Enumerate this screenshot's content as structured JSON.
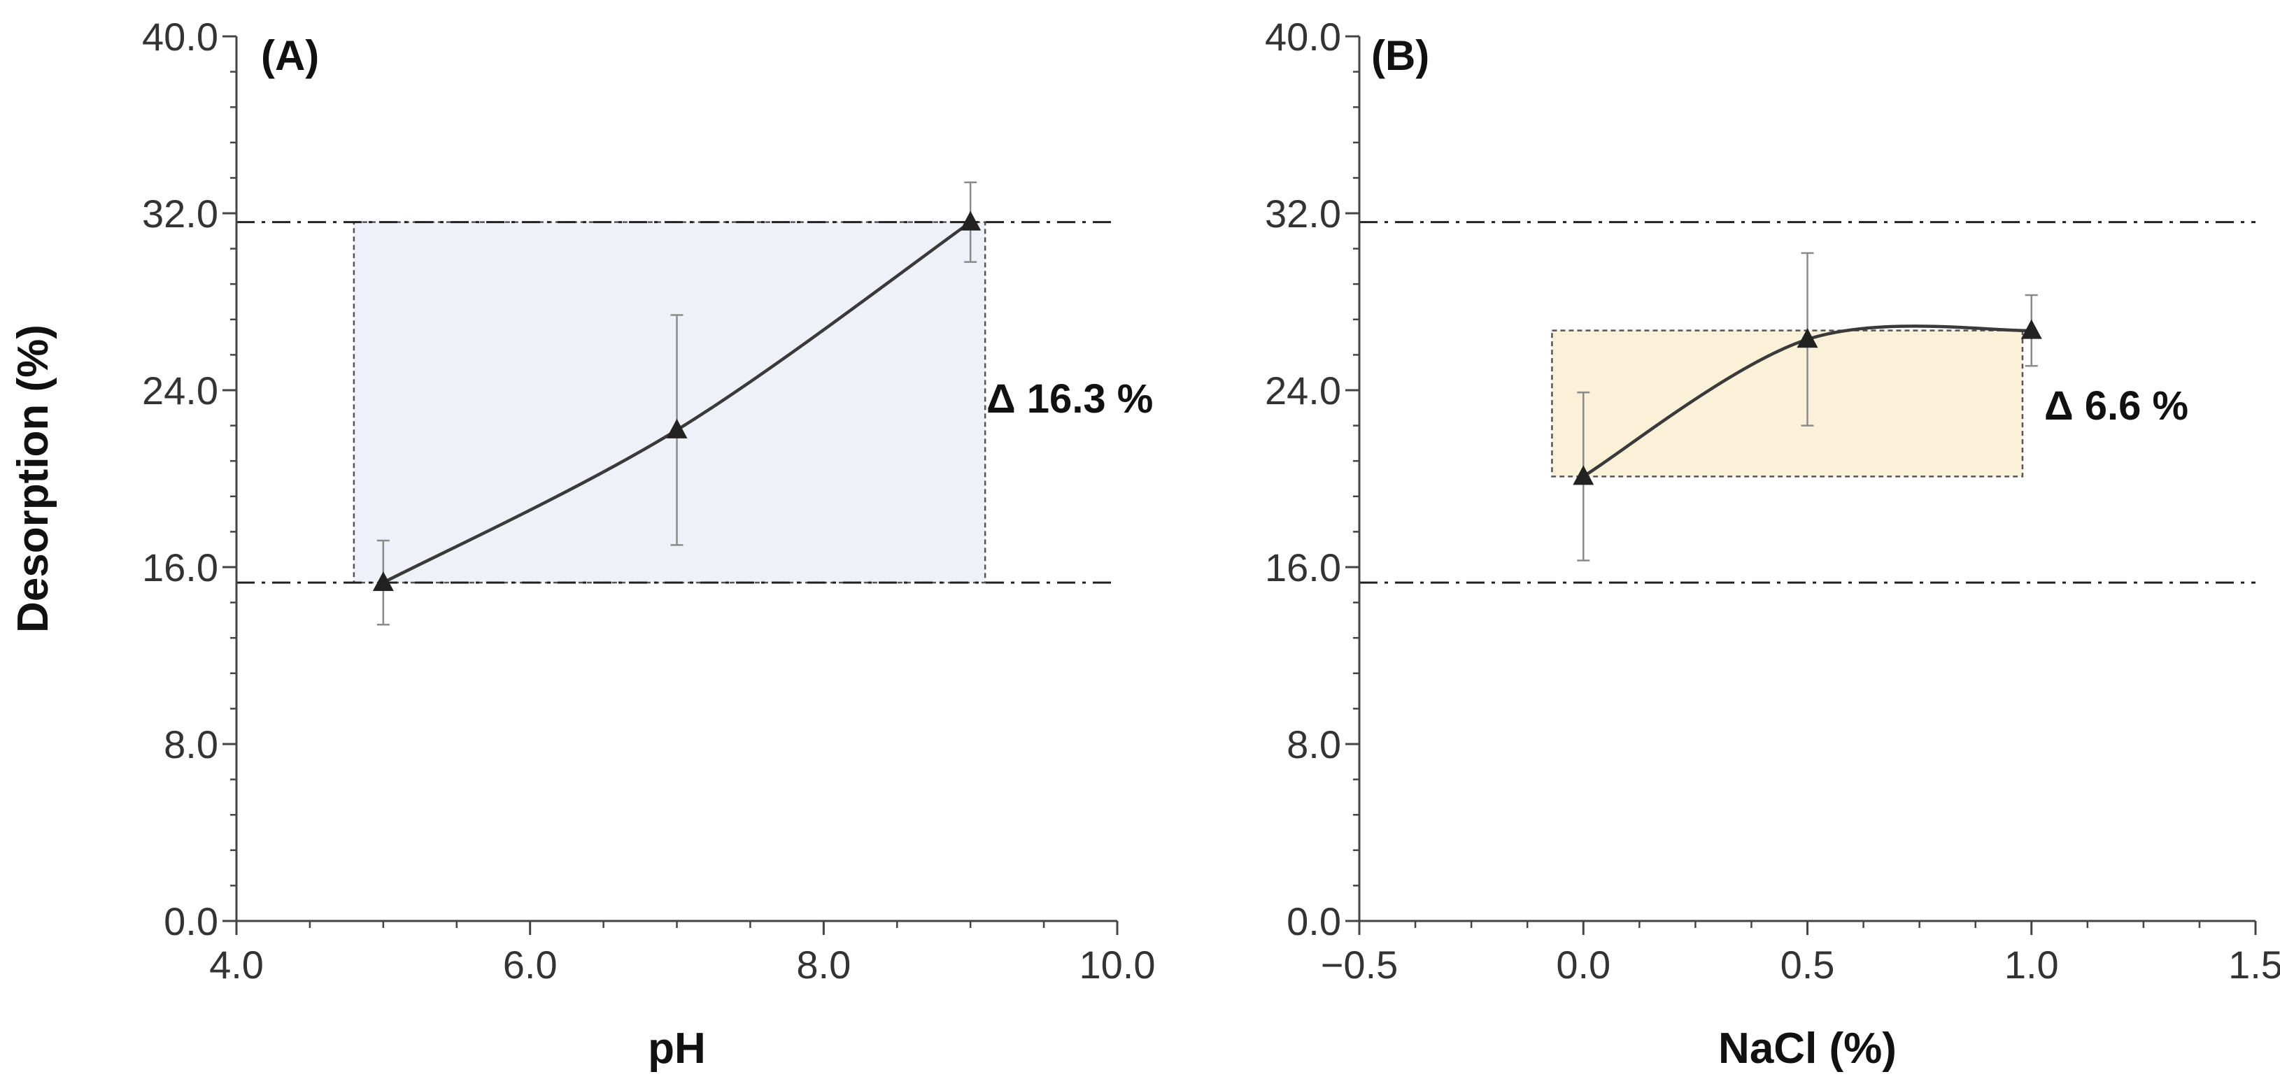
{
  "chart_data": [
    {
      "type": "line",
      "panel_label": "(A)",
      "xlabel": "pH",
      "ylabel": "Desorption (%)",
      "xlim": [
        4.0,
        10.0
      ],
      "ylim": [
        0.0,
        40.0
      ],
      "x_ticks": [
        4.0,
        6.0,
        8.0,
        10.0
      ],
      "x_tick_labels": [
        "4.0",
        "6.0",
        "8.0",
        "10.0"
      ],
      "y_ticks": [
        0.0,
        8.0,
        16.0,
        24.0,
        32.0,
        40.0
      ],
      "y_tick_labels": [
        "0.0",
        "8.0",
        "16.0",
        "24.0",
        "32.0",
        "40.0"
      ],
      "series": [
        {
          "x": [
            5.0,
            7.0,
            9.0
          ],
          "y": [
            15.3,
            22.2,
            31.6
          ],
          "err": [
            1.9,
            5.2,
            1.8
          ]
        }
      ],
      "ref_lines": [
        31.6,
        15.3
      ],
      "range_box": {
        "x": [
          4.8,
          9.1
        ],
        "y": [
          15.3,
          31.6
        ],
        "fill": "#eef2f8"
      },
      "annotation": "Δ 16.3 %",
      "grid": false
    },
    {
      "type": "line",
      "panel_label": "(B)",
      "xlabel": "NaCl (%)",
      "ylabel": "",
      "xlim": [
        -0.5,
        1.5
      ],
      "ylim": [
        0.0,
        40.0
      ],
      "x_ticks": [
        -0.5,
        0.0,
        0.5,
        1.0,
        1.5
      ],
      "x_tick_labels": [
        "−0.5",
        "0.0",
        "0.5",
        "1.0",
        "1.5"
      ],
      "y_ticks": [
        0.0,
        8.0,
        16.0,
        24.0,
        32.0,
        40.0
      ],
      "y_tick_labels": [
        "0.0",
        "8.0",
        "16.0",
        "24.0",
        "32.0",
        "40.0"
      ],
      "series": [
        {
          "x": [
            0.0,
            0.5,
            1.0
          ],
          "y": [
            20.1,
            26.3,
            26.7
          ],
          "err": [
            3.8,
            3.9,
            1.6
          ]
        }
      ],
      "ref_lines": [
        31.6,
        15.3
      ],
      "range_box": {
        "x": [
          -0.07,
          0.98
        ],
        "y": [
          20.1,
          26.7
        ],
        "fill": "#fbf1d9"
      },
      "annotation": "Δ 6.6 %",
      "grid": false
    }
  ]
}
